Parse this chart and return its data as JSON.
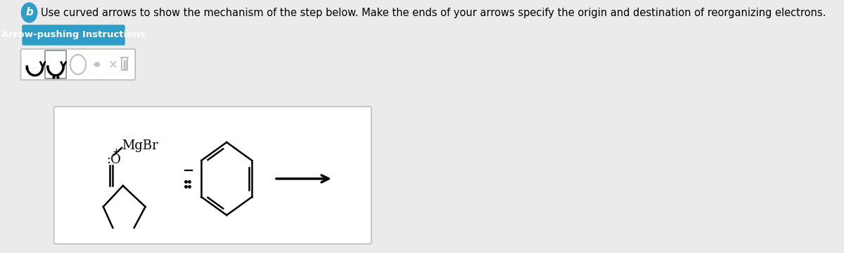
{
  "bg_color": "#ebebeb",
  "white_bg": "#ffffff",
  "title_text": "Use curved arrows to show the mechanism of the step below. Make the ends of your arrows specify the origin and destination of reorganizing electrons.",
  "title_fontsize": 10.5,
  "btn_text": "Arrow-pushing Instructions",
  "btn_color": "#2e9dc8",
  "btn_text_color": "#ffffff",
  "btn_fontsize": 9.5,
  "circle_color": "#2e9dc8",
  "circle_letter": "b",
  "mgbr_label": "MgBr"
}
